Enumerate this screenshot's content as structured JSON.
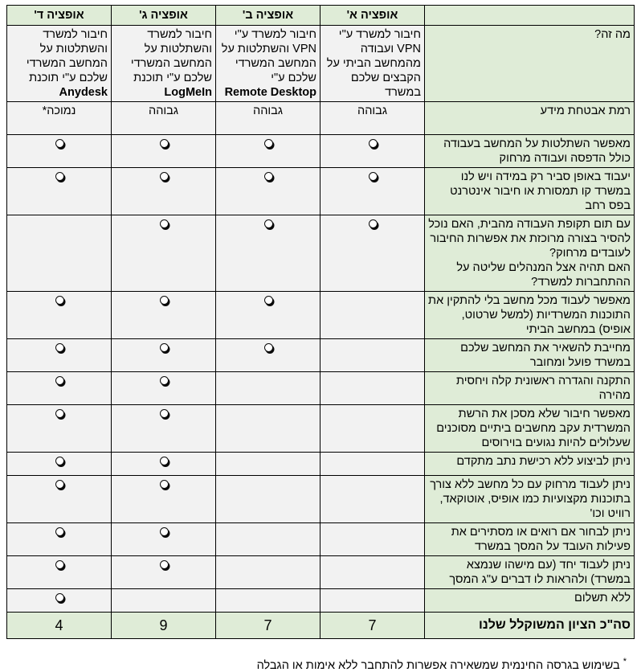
{
  "colors": {
    "header_green": "#dfecd7",
    "cell_gray": "#f2f2f2",
    "border": "#000000"
  },
  "icons": {
    "mark": "shadowed-white-circle"
  },
  "table": {
    "option_headers": [
      "אופציה א'",
      "אופציה ב'",
      "אופציה ג'",
      "אופציה ד'"
    ],
    "what_row": {
      "label": "מה זה?",
      "a_text": "חיבור למשרד ע\"י VPN ועבודה מהמחשב הביתי על הקבצים שלכם במשרד",
      "b_text": "חיבור למשרד ע\"י VPN והשתלטות על המחשב המשרדי שלכם ע\"י",
      "b_bold": "Remote Desktop",
      "c_text": "חיבור למשרד והשתלטות על המחשב המשרדי שלכם ע\"י תוכנת",
      "c_bold": "LogMeIn",
      "d_text": "חיבור למשרד והשתלטות על המחשב המשרדי שלכם ע\"י תוכנת",
      "d_bold": "Anydesk"
    },
    "security_row": {
      "label": "רמת אבטחת מידע",
      "a": "גבוהה",
      "b": "גבוהה",
      "c": "גבוהה",
      "d": "נמוכה*"
    },
    "feature_rows": [
      {
        "label": "מאפשר השתלטות על המחשב בעבודה כולל הדפסה ועבודה מרחוק",
        "a": true,
        "b": true,
        "c": true,
        "d": true
      },
      {
        "label": "יעבוד באופן סביר רק במידה ויש לנו במשרד קו תמסורת או חיבור אינטרנט בפס רחב",
        "a": true,
        "b": true,
        "c": true,
        "d": true
      },
      {
        "label": "עם תום תקופת העבודה מהבית, האם נוכל להסיר בצורה מרוכזת את אפשרות החיבור לעובדים מרחוק?\nהאם תהיה אצל המנהלים שליטה על ההתחברות למשרד?",
        "a": true,
        "b": true,
        "c": true,
        "d": false
      },
      {
        "label": "מאפשר לעבוד מכל מחשב בלי להתקין את התוכנות המשרדיות (למשל שרטוט, אופיס) במחשב הביתי",
        "a": false,
        "b": true,
        "c": true,
        "d": true
      },
      {
        "label": "מחייבת להשאיר את המחשב שלכם במשרד פועל ומחובר",
        "a": false,
        "b": true,
        "c": true,
        "d": true
      },
      {
        "label": "התקנה והגדרה ראשונית קלה ויחסית מהירה",
        "a": false,
        "b": false,
        "c": true,
        "d": true
      },
      {
        "label": "מאפשר חיבור שלא מסכן את הרשת המשרדית עקב מחשבים ביתיים מסוכנים שעלולים להיות נגועים בוירוסים",
        "a": false,
        "b": false,
        "c": true,
        "d": true
      },
      {
        "label": "ניתן לביצוע ללא רכישת נתב מתקדם",
        "a": false,
        "b": false,
        "c": true,
        "d": true
      },
      {
        "label": "ניתן לעבוד מרחוק עם כל מחשב ללא צורך בתוכנות מקצועיות כמו אופיס, אוטוקאד, רוויט וכו'",
        "a": false,
        "b": false,
        "c": true,
        "d": true
      },
      {
        "label": "ניתן לבחור אם רואים או מסתירים את פעילות העובד על המסך במשרד",
        "a": false,
        "b": false,
        "c": true,
        "d": true
      },
      {
        "label": "ניתן לעבוד יחד (עם מישהו שנמצא במשרד) ולהראות לו דברים ע\"ג המסך",
        "a": false,
        "b": false,
        "c": true,
        "d": true
      },
      {
        "label": "ללא תשלום",
        "a": false,
        "b": false,
        "c": false,
        "d": true
      }
    ],
    "total_row": {
      "label": "סה\"כ הציון המשוקלל שלנו",
      "a": "7",
      "b": "7",
      "c": "9",
      "d": "4"
    }
  },
  "footnote": {
    "marker": "*",
    "text": "בשימוש בגרסה החינמית שמשאירה אפשרות להתחבר ללא אימות או הגבלה"
  }
}
